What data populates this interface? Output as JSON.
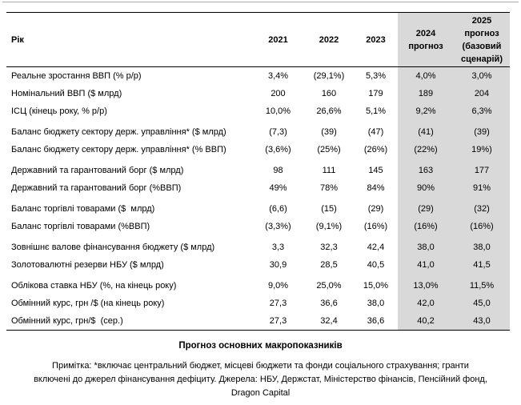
{
  "colors": {
    "forecast_shade": "#d9d9d9",
    "top_rule": "#a9a9a9",
    "table_rule": "#000000"
  },
  "table": {
    "header": {
      "label": "Рік",
      "columns": [
        "2021",
        "2022",
        "2023",
        "2024\nпрогноз",
        "2025\nпрогноз\n(базовий\nсценарій)"
      ]
    },
    "rows": [
      {
        "label": "Реальне зростання ВВП (% р/р)",
        "values": [
          "3,4%",
          "(29,1%)",
          "5,3%",
          "4,0%",
          "3,0%"
        ]
      },
      {
        "label": "Номінальний ВВП ($ млрд)",
        "values": [
          "200",
          "160",
          "179",
          "189",
          "204"
        ]
      },
      {
        "label": "ІСЦ (кінець року, % р/р)",
        "values": [
          "10,0%",
          "26,6%",
          "5,1%",
          "9,2%",
          "6,3%"
        ]
      },
      {
        "label": "Баланс бюджету сектору держ. управління* ($ млрд)",
        "values": [
          "(7,3)",
          "(39)",
          "(47)",
          "(41)",
          "(39)"
        ]
      },
      {
        "label": "Баланс бюджету сектору держ. управління* (% ВВП)",
        "values": [
          "(3,6%)",
          "(25%)",
          "(26%)",
          "(22%)",
          "19%)"
        ]
      },
      {
        "label": "Державний та гарантований борг ($ млрд)",
        "values": [
          "98",
          "111",
          "145",
          "163",
          "177"
        ]
      },
      {
        "label": "Державний та гарантований борг (%ВВП)",
        "values": [
          "49%",
          "78%",
          "84%",
          "90%",
          "91%"
        ]
      },
      {
        "label": "Баланс торгівлі товарами ($  млрд)",
        "values": [
          "(6,6)",
          "(15)",
          "(29)",
          "(29)",
          "(32)"
        ]
      },
      {
        "label": "Баланс торгівлі товарами (%ВВП)",
        "values": [
          "(3,3%)",
          "(9,1%)",
          "(16%)",
          "(16%)",
          "(16%)"
        ]
      },
      {
        "label": "Зовнішнє валове фінансування бюджету ($ млрд)",
        "values": [
          "3,3",
          "32,3",
          "42,4",
          "38,0",
          "38,0"
        ]
      },
      {
        "label": "Золотовалютні резерви НБУ ($ млрд)",
        "values": [
          "30,9",
          "28,5",
          "40,5",
          "41,0",
          "41,5"
        ]
      },
      {
        "label": "Облікова ставка НБУ (%, на кінець року)",
        "values": [
          "9,0%",
          "25,0%",
          "15,0%",
          "13,0%",
          "11,5%"
        ]
      },
      {
        "label": "Обмінний курс, грн /$ (на кінець року)",
        "values": [
          "27,3",
          "36,6",
          "38,0",
          "42,0",
          "45,0"
        ]
      },
      {
        "label": "Обмінний курс, грн/$  (сер.)",
        "values": [
          "27,3",
          "32,4",
          "36,6",
          "40,2",
          "43,0"
        ]
      }
    ]
  },
  "caption": "Прогноз основних макропоказників",
  "note": {
    "lines": [
      "Примітка: *включає центральний бюджет, місцеві бюджети та фонди соціального страхування; гранти",
      "включені до джерел фінансування дефіциту. Джерела: НБУ, Держстат, Міністерство фінансів, Пенсійний фонд,",
      "Dragon Capital"
    ]
  }
}
